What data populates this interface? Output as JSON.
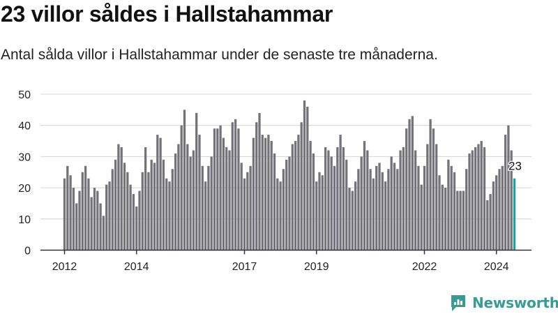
{
  "header": {
    "title": "23 villor såldes i Hallstahammar",
    "subtitle": "Antal sålda villor i Hallstahammar under de senaste tre månaderna."
  },
  "brand": {
    "name": "Newsworthy",
    "icon": "newsworthy-logo-icon",
    "color": "#3a9b93"
  },
  "colors": {
    "bar": "#75737a",
    "highlight": "#2a9d94",
    "grid": "#d4d4d4",
    "axis": "#333333",
    "text": "#222222"
  },
  "chart_data": {
    "type": "bar",
    "ylim": [
      0,
      50
    ],
    "yticks": [
      0,
      10,
      20,
      30,
      40,
      50
    ],
    "xticks": [
      {
        "label": "2012",
        "index": 0
      },
      {
        "label": "2014",
        "index": 24
      },
      {
        "label": "2017",
        "index": 60
      },
      {
        "label": "2019",
        "index": 84
      },
      {
        "label": "2022",
        "index": 120
      },
      {
        "label": "2024",
        "index": 144
      }
    ],
    "grid": true,
    "highlight_label": "23",
    "values": [
      23,
      27,
      24,
      20,
      15,
      19,
      25,
      27,
      23,
      17,
      20,
      19,
      15,
      11,
      21,
      22,
      26,
      29,
      34,
      33,
      28,
      25,
      21,
      18,
      14,
      19,
      25,
      33,
      25,
      29,
      28,
      37,
      36,
      29,
      23,
      22,
      26,
      31,
      34,
      40,
      45,
      34,
      30,
      32,
      44,
      37,
      27,
      22,
      27,
      30,
      39,
      39,
      40,
      36,
      33,
      32,
      41,
      42,
      39,
      28,
      23,
      25,
      27,
      36,
      41,
      44,
      37,
      36,
      37,
      35,
      31,
      23,
      22,
      26,
      29,
      30,
      34,
      35,
      37,
      41,
      48,
      46,
      35,
      31,
      22,
      25,
      24,
      33,
      32,
      30,
      27,
      33,
      37,
      33,
      29,
      20,
      19,
      22,
      26,
      30,
      35,
      32,
      26,
      23,
      27,
      28,
      25,
      22,
      26,
      30,
      28,
      26,
      32,
      33,
      39,
      42,
      43,
      32,
      27,
      21,
      27,
      34,
      42,
      39,
      34,
      24,
      21,
      20,
      29,
      27,
      25,
      19,
      19,
      19,
      26,
      31,
      32,
      33,
      34,
      35,
      33,
      16,
      18,
      22,
      24,
      26,
      27,
      37,
      40,
      32,
      23
    ]
  }
}
